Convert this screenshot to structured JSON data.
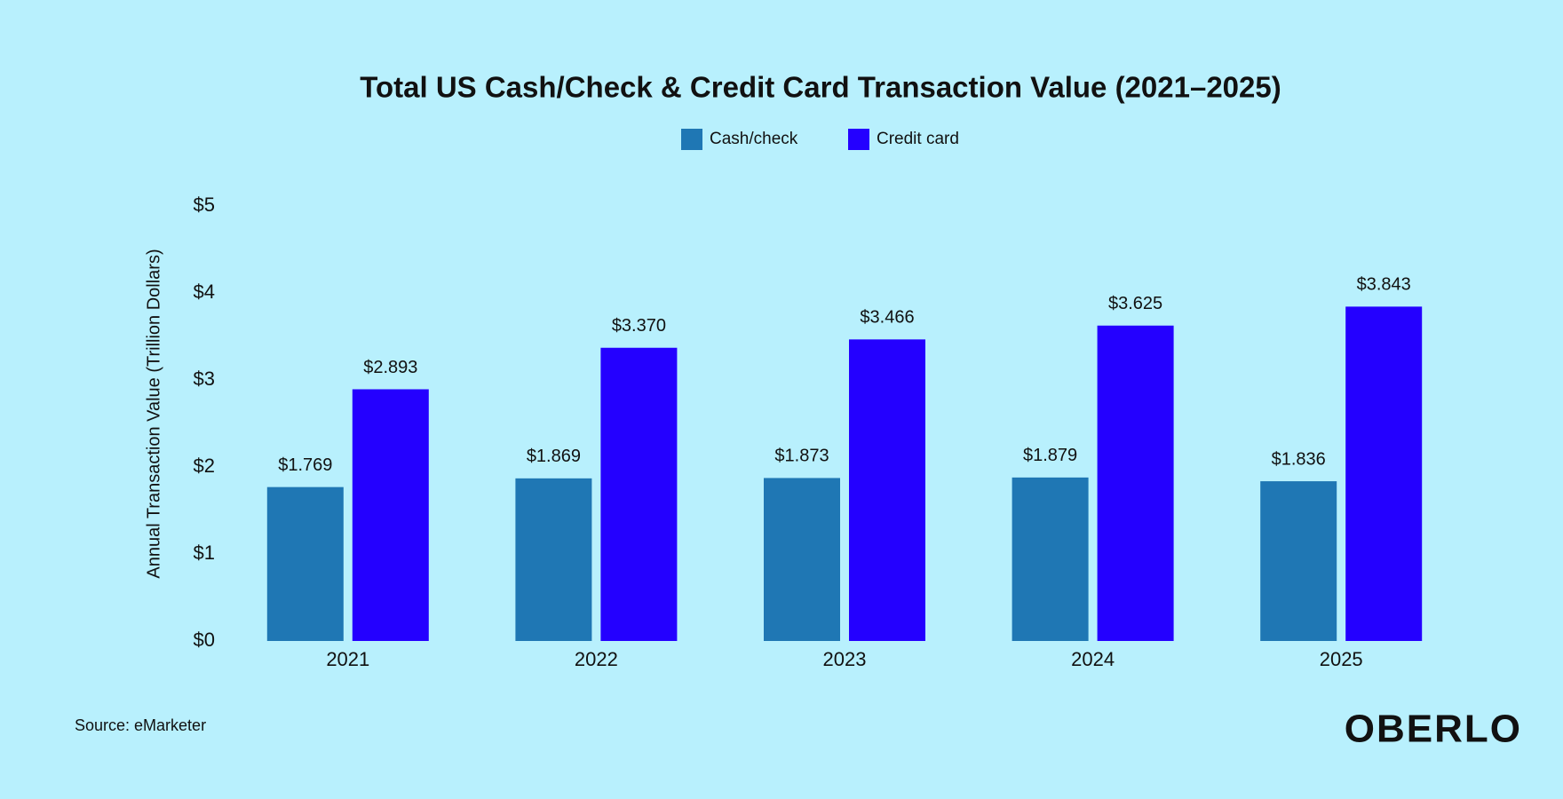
{
  "chart_data": {
    "type": "bar",
    "title": "Total US Cash/Check & Credit Card Transaction Value (2021–2025)",
    "y_label": "Annual Transaction Value (Trillion Dollars)",
    "categories": [
      "2021",
      "2022",
      "2023",
      "2024",
      "2025"
    ],
    "series": [
      {
        "name": "Cash/check",
        "color": "#1f77b4",
        "values": [
          1.769,
          1.869,
          1.873,
          1.879,
          1.836
        ],
        "value_labels": [
          "$1.769",
          "$1.869",
          "$1.873",
          "$1.879",
          "$1.836"
        ]
      },
      {
        "name": "Credit card",
        "color": "#2400ff",
        "values": [
          2.893,
          3.37,
          3.466,
          3.625,
          3.843
        ],
        "value_labels": [
          "$2.893",
          "$3.370",
          "$3.466",
          "$3.625",
          "$3.843"
        ]
      }
    ],
    "ylim": [
      0,
      5
    ],
    "yticks": [
      {
        "value": 0,
        "label": "$0"
      },
      {
        "value": 1,
        "label": "$1"
      },
      {
        "value": 2,
        "label": "$2"
      },
      {
        "value": 3,
        "label": "$3"
      },
      {
        "value": 4,
        "label": "$4"
      },
      {
        "value": 5,
        "label": "$5"
      }
    ],
    "grid": false,
    "legend": "top",
    "source": "Source: eMarketer",
    "logo": "OBERLO"
  }
}
